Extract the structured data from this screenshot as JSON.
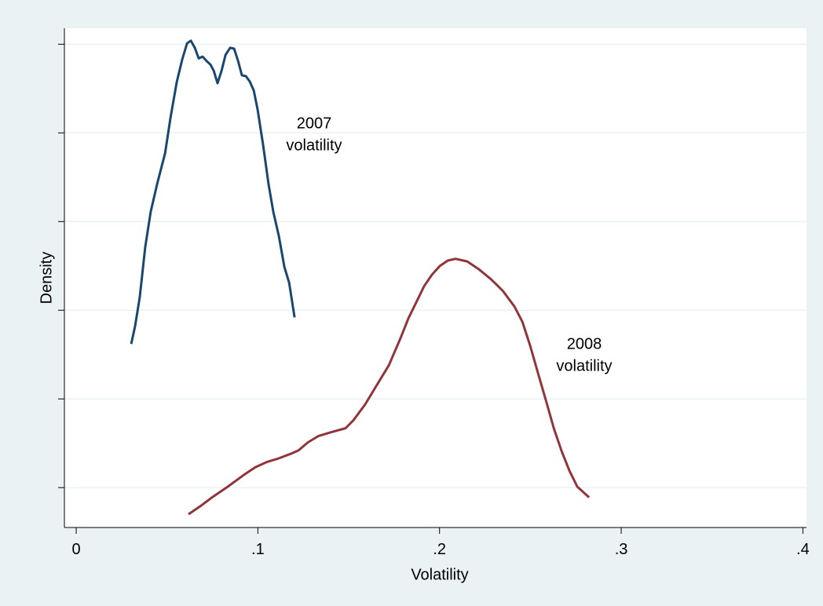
{
  "chart_data": {
    "type": "line",
    "xlabel": "Volatility",
    "ylabel": "Density",
    "xlim": [
      -0.0065,
      0.402
    ],
    "ylim": [
      0.55,
      6.18
    ],
    "xticks": [
      0,
      {
        "value": 0.1,
        "label": ".1"
      },
      {
        "value": 0.2,
        "label": ".2"
      },
      {
        "value": 0.3,
        "label": ".3"
      },
      {
        "value": 0.4,
        "label": ".4"
      }
    ],
    "yticks": [
      1,
      2,
      3,
      4,
      5,
      6
    ],
    "ytick_labels": false,
    "grid": true,
    "series": [
      {
        "color": "#1a476f",
        "x": [
          0.0303,
          0.0324,
          0.035,
          0.038,
          0.041,
          0.0445,
          0.0489,
          0.0519,
          0.0553,
          0.0584,
          0.061,
          0.0631,
          0.0653,
          0.0674,
          0.0696,
          0.0718,
          0.0739,
          0.0757,
          0.0778,
          0.08,
          0.0822,
          0.0847,
          0.0869,
          0.0891,
          0.0912,
          0.0934,
          0.0955,
          0.0977,
          0.0999,
          0.1029,
          0.1059,
          0.1085,
          0.1115,
          0.1146,
          0.1172,
          0.1202
        ],
        "values": [
          2.62,
          2.82,
          3.15,
          3.71,
          4.11,
          4.42,
          4.77,
          5.17,
          5.57,
          5.83,
          6.01,
          6.04,
          5.96,
          5.84,
          5.86,
          5.81,
          5.77,
          5.7,
          5.56,
          5.7,
          5.88,
          5.96,
          5.95,
          5.81,
          5.65,
          5.64,
          5.58,
          5.48,
          5.26,
          4.86,
          4.42,
          4.11,
          3.84,
          3.49,
          3.31,
          2.92
        ]
      },
      {
        "color": "#90353b",
        "x": [
          0.0618,
          0.0683,
          0.0748,
          0.0834,
          0.0921,
          0.0986,
          0.1051,
          0.1115,
          0.118,
          0.1224,
          0.1275,
          0.1332,
          0.1396,
          0.1483,
          0.1526,
          0.1591,
          0.1656,
          0.1721,
          0.1786,
          0.1829,
          0.1872,
          0.1915,
          0.1958,
          0.2002,
          0.2045,
          0.2088,
          0.2153,
          0.2218,
          0.2283,
          0.2348,
          0.2413,
          0.2456,
          0.2499,
          0.2542,
          0.2586,
          0.2629,
          0.2672,
          0.2715,
          0.2758,
          0.2823
        ],
        "values": [
          0.7,
          0.79,
          0.89,
          1.01,
          1.14,
          1.23,
          1.29,
          1.33,
          1.38,
          1.42,
          1.51,
          1.58,
          1.62,
          1.67,
          1.76,
          1.94,
          2.16,
          2.38,
          2.69,
          2.91,
          3.09,
          3.27,
          3.4,
          3.5,
          3.56,
          3.58,
          3.55,
          3.46,
          3.35,
          3.22,
          3.04,
          2.87,
          2.6,
          2.29,
          1.98,
          1.67,
          1.41,
          1.19,
          1.01,
          0.89
        ]
      }
    ],
    "annotations": [
      [
        "2007",
        "volatility"
      ],
      [
        "2008",
        "volatility"
      ]
    ]
  }
}
